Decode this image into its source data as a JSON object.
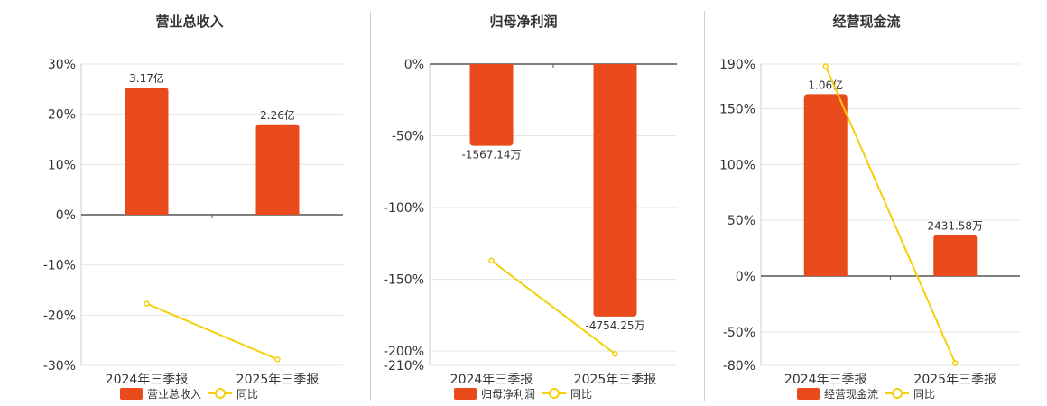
{
  "colors": {
    "bar": "#E84A1C",
    "line": "#F5CF0A",
    "grid": "#e6e6e6",
    "axis": "#555555",
    "text": "#333333"
  },
  "legend": {
    "yoy_label": "同比"
  },
  "chart_data": [
    {
      "type": "bar",
      "title": "营业总收入",
      "categories": [
        "2024年三季报",
        "2025年三季报"
      ],
      "series": [
        {
          "name": "营业总收入",
          "kind": "bar",
          "values": [
            25.3,
            18.0
          ],
          "labels": [
            "3.17亿",
            "2.26亿"
          ]
        },
        {
          "name": "同比",
          "kind": "line",
          "values": [
            -17.7,
            -28.8
          ]
        }
      ],
      "yticks": [
        30,
        20,
        10,
        0,
        -10,
        -20,
        -30
      ],
      "ylim": [
        -30,
        30
      ],
      "y_unit": "%",
      "grid": true,
      "legend_position": "bottom"
    },
    {
      "type": "bar",
      "title": "归母净利润",
      "categories": [
        "2024年三季报",
        "2025年三季报"
      ],
      "series": [
        {
          "name": "归母净利润",
          "kind": "bar",
          "values": [
            -57,
            -176
          ],
          "labels": [
            "-1567.14万",
            "-4754.25万"
          ]
        },
        {
          "name": "同比",
          "kind": "line",
          "values": [
            -137,
            -202
          ]
        }
      ],
      "yticks": [
        0,
        -50,
        -100,
        -150,
        -200,
        -210
      ],
      "ylim": [
        -210,
        0
      ],
      "y_unit": "%",
      "grid": true,
      "legend_position": "bottom"
    },
    {
      "type": "bar",
      "title": "经营现金流",
      "categories": [
        "2024年三季报",
        "2025年三季报"
      ],
      "series": [
        {
          "name": "经营现金流",
          "kind": "bar",
          "values": [
            163,
            37
          ],
          "labels": [
            "1.06亿",
            "2431.58万"
          ]
        },
        {
          "name": "同比",
          "kind": "line",
          "values": [
            188,
            -78
          ]
        }
      ],
      "yticks": [
        190,
        150,
        100,
        50,
        0,
        -50,
        -80
      ],
      "ylim": [
        -80,
        190
      ],
      "y_unit": "%",
      "grid": true,
      "legend_position": "bottom"
    }
  ]
}
